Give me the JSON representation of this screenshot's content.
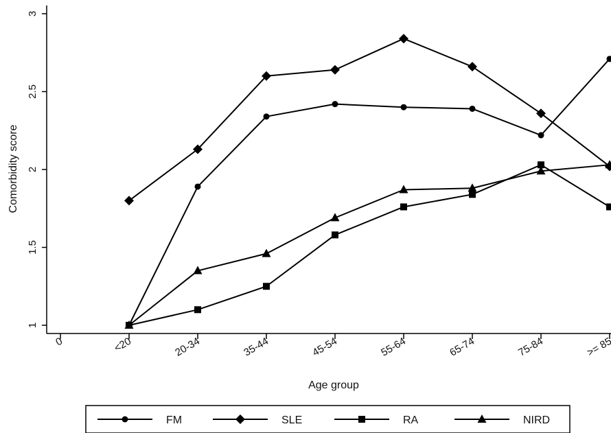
{
  "chart_data": {
    "type": "line",
    "title": "",
    "xlabel": "Age group",
    "ylabel": "Comorbidity score",
    "categories": [
      "<20",
      "20-34",
      "35-44",
      "45-54",
      "55-64",
      "65-74",
      "75-84",
      ">= 85"
    ],
    "x_ticks": [
      "0",
      "<20",
      "20-34",
      "35-44",
      "45-54",
      "55-64",
      "65-74",
      "75-84",
      ">= 85"
    ],
    "y_ticks": [
      "1",
      "1.5",
      "2",
      "2.5",
      "3"
    ],
    "ylim": [
      1,
      3
    ],
    "grid": false,
    "legend_position": "bottom",
    "series": [
      {
        "name": "FM",
        "marker": "circle",
        "values": [
          1.0,
          1.89,
          2.34,
          2.42,
          2.4,
          2.39,
          2.22,
          2.71
        ]
      },
      {
        "name": "SLE",
        "marker": "diamond",
        "values": [
          1.8,
          2.13,
          2.6,
          2.64,
          2.84,
          2.66,
          2.36,
          2.02
        ]
      },
      {
        "name": "RA",
        "marker": "square",
        "values": [
          1.0,
          1.1,
          1.25,
          1.58,
          1.76,
          1.84,
          2.03,
          1.76
        ]
      },
      {
        "name": "NIRD",
        "marker": "triangle",
        "values": [
          1.0,
          1.35,
          1.46,
          1.69,
          1.87,
          1.88,
          1.99,
          2.03
        ]
      }
    ],
    "colors": {
      "line": "#000000",
      "background": "#ffffff"
    }
  }
}
